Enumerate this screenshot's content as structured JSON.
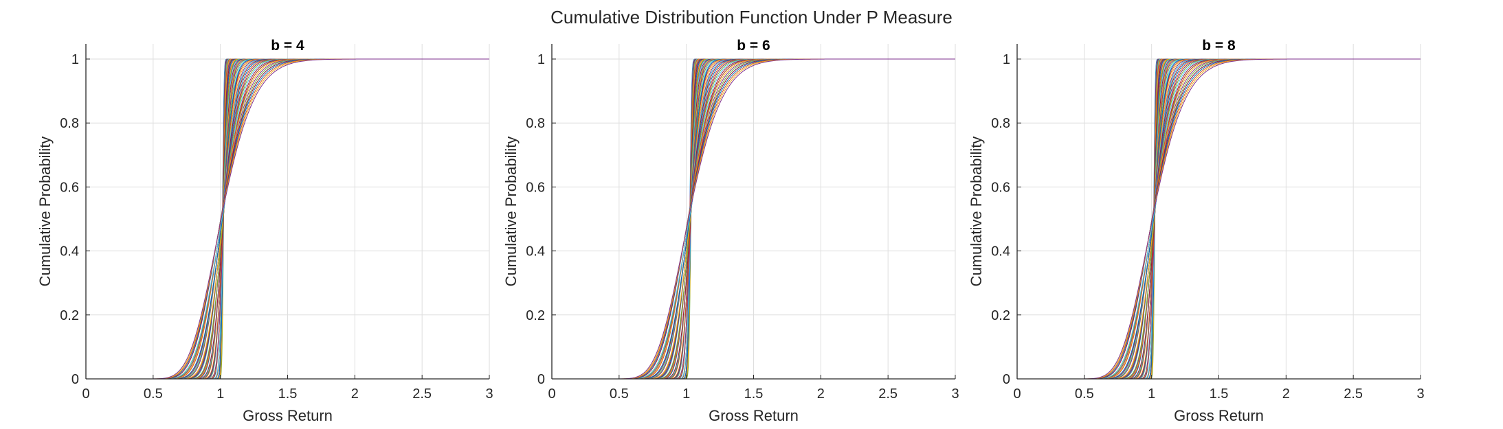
{
  "figure": {
    "title": "Cumulative Distribution Function Under P Measure"
  },
  "colors": {
    "axis": "#262626",
    "grid": "#dedede",
    "palette": [
      "#0072BD",
      "#D95319",
      "#EDB120",
      "#7E2F8E",
      "#77AC30",
      "#4DBEEE",
      "#A2142F"
    ]
  },
  "chart_data": [
    {
      "type": "line",
      "title": "b = 4",
      "xlabel": "Gross Return",
      "ylabel": "Cumulative Probability",
      "xlim": [
        0,
        3
      ],
      "ylim": [
        0,
        1
      ],
      "xticks": [
        0,
        0.5,
        1,
        1.5,
        2,
        2.5,
        3
      ],
      "yticks": [
        0,
        0.2,
        0.4,
        0.6,
        0.8,
        1
      ],
      "xtick_labels": [
        "0",
        "0.5",
        "1",
        "1.5",
        "2",
        "2.5",
        "3"
      ],
      "ytick_labels": [
        "0",
        "0.2",
        "0.4",
        "0.6",
        "0.8",
        "1"
      ],
      "grid": true,
      "series_description": "family of lognormal-like CDFs centered near gross return 1.0",
      "mean": 1.02,
      "sigma_min": 0.008,
      "sigma_max": 0.19,
      "series_count": 60,
      "x_end": 3
    },
    {
      "type": "line",
      "title": "b = 6",
      "xlabel": "Gross Return",
      "ylabel": "Cumulative Probability",
      "xlim": [
        0,
        3
      ],
      "ylim": [
        0,
        1
      ],
      "xticks": [
        0,
        0.5,
        1,
        1.5,
        2,
        2.5,
        3
      ],
      "yticks": [
        0,
        0.2,
        0.4,
        0.6,
        0.8,
        1
      ],
      "xtick_labels": [
        "0",
        "0.5",
        "1",
        "1.5",
        "2",
        "2.5",
        "3"
      ],
      "ytick_labels": [
        "0",
        "0.2",
        "0.4",
        "0.6",
        "0.8",
        "1"
      ],
      "grid": true,
      "series_description": "family of lognormal-like CDFs centered near gross return 1.0",
      "mean": 1.03,
      "sigma_min": 0.01,
      "sigma_max": 0.19,
      "series_count": 60,
      "x_end": 3
    },
    {
      "type": "line",
      "title": "b = 8",
      "xlabel": "Gross Return",
      "ylabel": "Cumulative Probability",
      "xlim": [
        0,
        3
      ],
      "ylim": [
        0,
        1
      ],
      "xticks": [
        0,
        0.5,
        1,
        1.5,
        2,
        2.5,
        3
      ],
      "yticks": [
        0,
        0.2,
        0.4,
        0.6,
        0.8,
        1
      ],
      "xtick_labels": [
        "0",
        "0.5",
        "1",
        "1.5",
        "2",
        "2.5",
        "3"
      ],
      "ytick_labels": [
        "0",
        "0.2",
        "0.4",
        "0.6",
        "0.8",
        "1"
      ],
      "grid": true,
      "series_description": "family of lognormal-like CDFs centered near gross return 1.0",
      "mean": 1.02,
      "sigma_min": 0.008,
      "sigma_max": 0.19,
      "series_count": 60,
      "x_end": 3
    }
  ]
}
